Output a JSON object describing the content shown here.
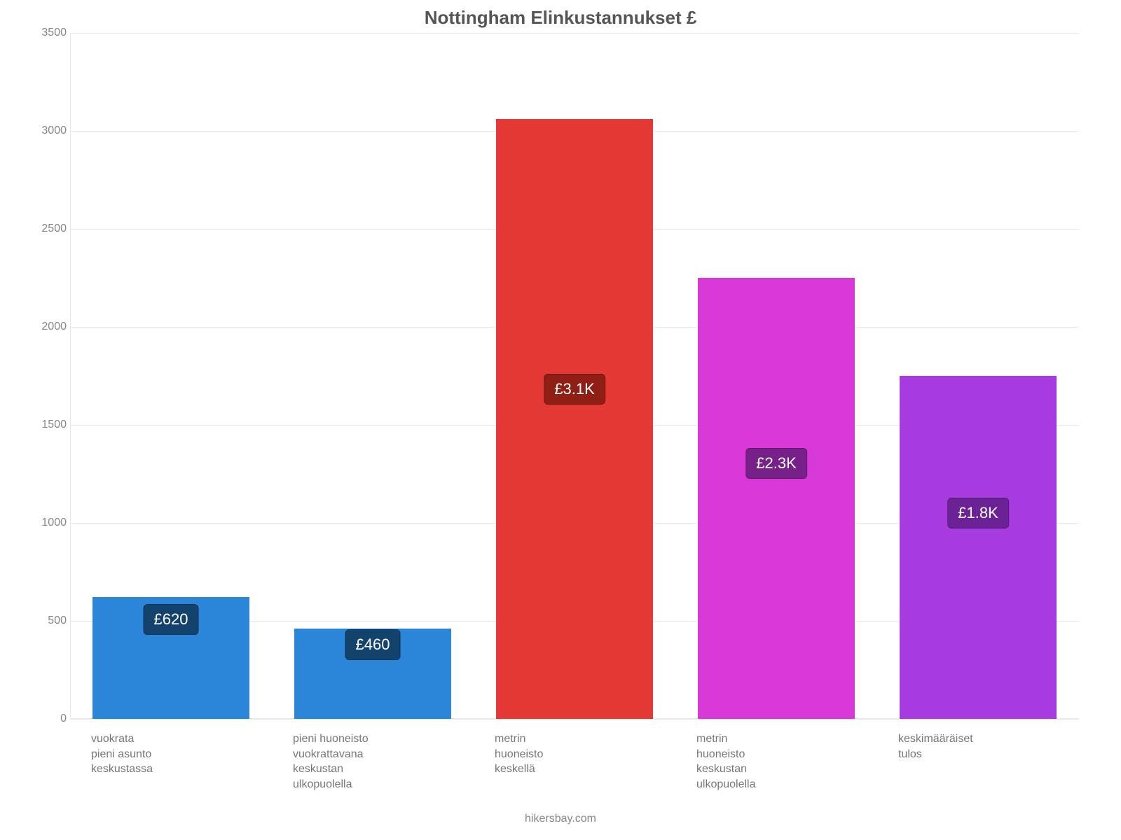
{
  "chart": {
    "type": "bar",
    "title": "Nottingham Elinkustannukset £",
    "title_fontsize": 26,
    "title_color": "#555555",
    "background_color": "#ffffff",
    "grid_color": "#e9e9e9",
    "axis_label_color": "#888888",
    "axis_label_fontsize": 16,
    "x_label_fontsize": 16,
    "ylim": [
      0,
      3500
    ],
    "ytick_step": 500,
    "yticks": [
      0,
      500,
      1000,
      1500,
      2000,
      2500,
      3000,
      3500
    ],
    "bar_width_pct": 78,
    "value_badge_fontsize": 22,
    "bars": [
      {
        "category": [
          "vuokrata",
          "pieni asunto",
          "keskustassa"
        ],
        "value": 620,
        "display_value": "£620",
        "color": "#2b85d8",
        "badge_bg": "#13436d",
        "badge_offset_pct": 18
      },
      {
        "category": [
          "pieni huoneisto",
          "vuokrattavana",
          "keskustan",
          "ulkopuolella"
        ],
        "value": 460,
        "display_value": "£460",
        "color": "#2b85d8",
        "badge_bg": "#13436d",
        "badge_offset_pct": 18
      },
      {
        "category": [
          "metrin",
          "huoneisto",
          "keskellä"
        ],
        "value": 3060,
        "display_value": "£3.1K",
        "color": "#e53935",
        "badge_bg": "#8f1f14",
        "badge_offset_pct": 45
      },
      {
        "category": [
          "metrin",
          "huoneisto",
          "keskustan",
          "ulkopuolella"
        ],
        "value": 2250,
        "display_value": "£2.3K",
        "color": "#d838d8",
        "badge_bg": "#78208a",
        "badge_offset_pct": 42
      },
      {
        "category": [
          "keskimääräiset",
          "tulos"
        ],
        "value": 1750,
        "display_value": "£1.8K",
        "color": "#a83be0",
        "badge_bg": "#6b2296",
        "badge_offset_pct": 40
      }
    ],
    "attribution": "hikersbay.com",
    "attribution_fontsize": 16
  }
}
